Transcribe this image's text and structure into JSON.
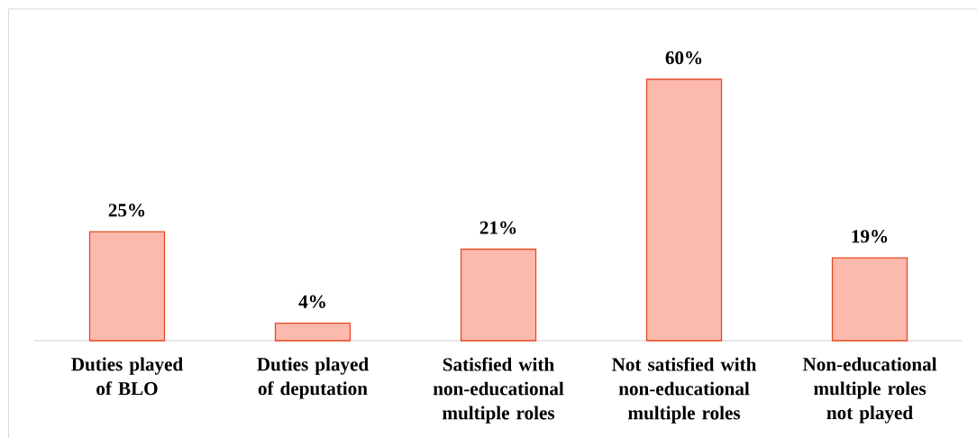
{
  "chart_data": {
    "type": "bar",
    "categories": [
      "Duties played of BLO",
      "Duties played of deputation",
      "Satisfied with non-educational multiple roles",
      "Not satisfied with non-educational multiple roles",
      "Non-educational multiple roles not played"
    ],
    "values": [
      25,
      4,
      21,
      60,
      19
    ],
    "value_labels": [
      "25%",
      "4%",
      "21%",
      "60%",
      "19%"
    ],
    "color": "#fcb9ae"
  }
}
